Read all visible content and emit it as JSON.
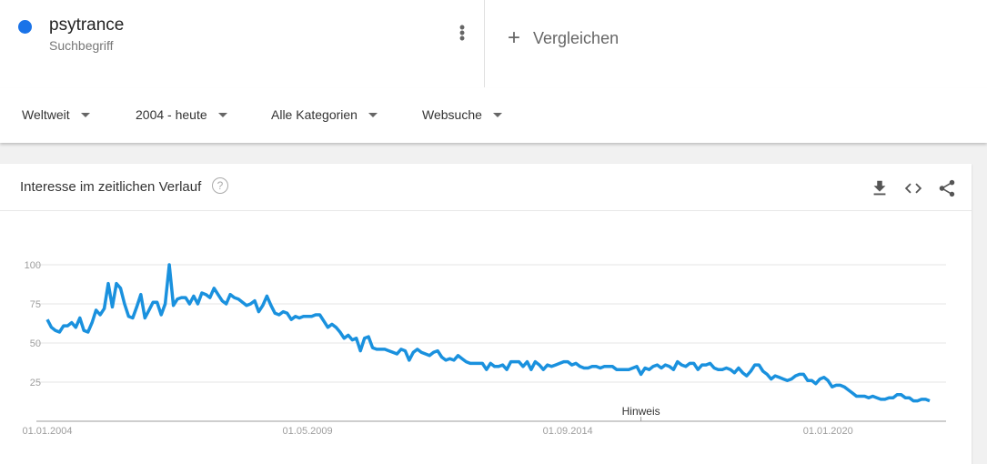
{
  "term": {
    "name": "psytrance",
    "type": "Suchbegriff",
    "color": "#1a73e8",
    "menu_icon": "more-vert-icon"
  },
  "compare": {
    "label": "Vergleichen",
    "icon": "plus-icon"
  },
  "filters": [
    {
      "label": "Weltweit"
    },
    {
      "label": "2004 - heute"
    },
    {
      "label": "Alle Kategorien"
    },
    {
      "label": "Websuche"
    }
  ],
  "card": {
    "title": "Interesse im zeitlichen Verlauf",
    "help_icon": "help-icon",
    "actions": [
      "download-icon",
      "embed-icon",
      "share-icon"
    ]
  },
  "chart_data": {
    "type": "line",
    "start": "2004-01",
    "interval": "month",
    "ylim": [
      0,
      100
    ],
    "yticks": [
      25,
      50,
      75,
      100
    ],
    "xticks": [
      {
        "label": "01.01.2004",
        "month": "2004-01"
      },
      {
        "label": "01.05.2009",
        "month": "2009-05"
      },
      {
        "label": "01.09.2014",
        "month": "2014-09"
      },
      {
        "label": "01.01.2020",
        "month": "2020-01"
      }
    ],
    "annotation": {
      "label": "Hinweis",
      "month": "2016-03"
    },
    "grid": true,
    "color": "#1a91de",
    "values": [
      65,
      60,
      58,
      57,
      61,
      61,
      63,
      60,
      66,
      58,
      57,
      63,
      71,
      68,
      72,
      88,
      73,
      88,
      85,
      75,
      67,
      66,
      73,
      81,
      66,
      71,
      76,
      76,
      68,
      75,
      100,
      74,
      78,
      79,
      79,
      75,
      80,
      75,
      82,
      81,
      79,
      85,
      81,
      77,
      75,
      81,
      79,
      78,
      76,
      74,
      75,
      77,
      70,
      74,
      80,
      74,
      69,
      68,
      70,
      69,
      65,
      67,
      66,
      67,
      67,
      67,
      68,
      68,
      64,
      60,
      62,
      60,
      57,
      53,
      55,
      52,
      53,
      45,
      53,
      54,
      47,
      46,
      46,
      46,
      45,
      44,
      43,
      46,
      45,
      39,
      44,
      46,
      44,
      43,
      42,
      44,
      45,
      41,
      39,
      40,
      39,
      42,
      40,
      38,
      37,
      37,
      37,
      37,
      33,
      37,
      35,
      35,
      36,
      33,
      38,
      38,
      38,
      35,
      38,
      33,
      38,
      36,
      33,
      36,
      35,
      36,
      37,
      38,
      38,
      36,
      37,
      35,
      34,
      34,
      35,
      35,
      34,
      35,
      35,
      35,
      33,
      33,
      33,
      33,
      34,
      35,
      30,
      34,
      33,
      35,
      36,
      34,
      36,
      35,
      33,
      38,
      36,
      35,
      37,
      37,
      33,
      36,
      36,
      37,
      34,
      33,
      33,
      34,
      33,
      31,
      34,
      31,
      29,
      32,
      36,
      36,
      32,
      30,
      27,
      29,
      28,
      27,
      26,
      27,
      29,
      30,
      30,
      26,
      26,
      24,
      27,
      28,
      26,
      22,
      23,
      23,
      22,
      20,
      18,
      16,
      16,
      16,
      15,
      16,
      15,
      14,
      14,
      15,
      15,
      17,
      17,
      15,
      15,
      13,
      13,
      14,
      14,
      13
    ]
  }
}
